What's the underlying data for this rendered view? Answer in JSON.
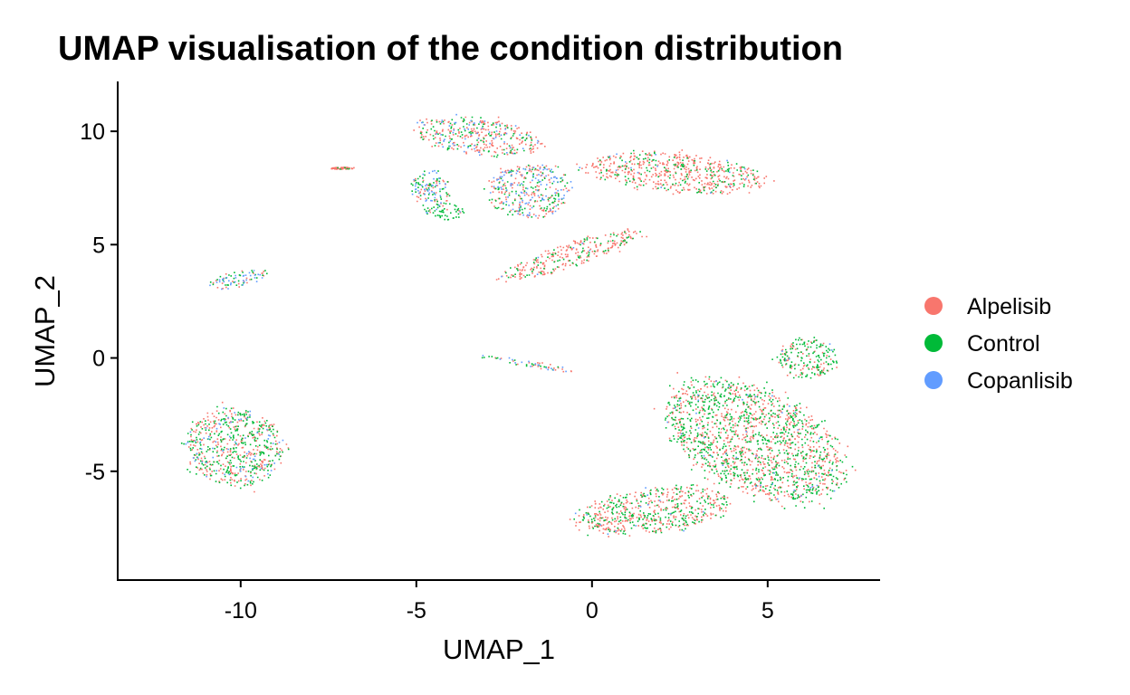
{
  "chart_data": {
    "type": "scatter",
    "title": "UMAP visualisation of the condition distribution",
    "xlabel": "UMAP_1",
    "ylabel": "UMAP_2",
    "xlim": [
      -13.5,
      8.2
    ],
    "ylim": [
      -9.8,
      12.2
    ],
    "x_ticks": [
      -10,
      -5,
      0,
      5
    ],
    "x_tick_labels": [
      "-10",
      "-5",
      "0",
      "5"
    ],
    "y_ticks": [
      -5,
      0,
      5,
      10
    ],
    "y_tick_labels": [
      "-5",
      "0",
      "5",
      "10"
    ],
    "grid": false,
    "legend_position": "right",
    "series": [
      {
        "name": "Alpelisib",
        "color": "#F8766D"
      },
      {
        "name": "Control",
        "color": "#00BA38"
      },
      {
        "name": "Copanlisib",
        "color": "#619CFF"
      }
    ],
    "clusters": [
      {
        "id": "cluster-large-bottom-right",
        "center": [
          4.6,
          -3.6
        ],
        "spread": [
          2.0,
          3.2
        ],
        "angle_deg": 42,
        "weights": [
          0.47,
          0.51,
          0.02
        ]
      },
      {
        "id": "cluster-bottom-right-lobe",
        "center": [
          1.8,
          -6.7
        ],
        "spread": [
          2.3,
          1.0
        ],
        "angle_deg": 12,
        "weights": [
          0.55,
          0.43,
          0.02
        ]
      },
      {
        "id": "cluster-bottom-right-upper",
        "center": [
          6.1,
          0.0
        ],
        "spread": [
          0.9,
          0.9
        ],
        "angle_deg": 0,
        "weights": [
          0.38,
          0.6,
          0.02
        ]
      },
      {
        "id": "cluster-top-right",
        "center": [
          2.3,
          8.2
        ],
        "spread": [
          2.6,
          0.9
        ],
        "angle_deg": -8,
        "weights": [
          0.72,
          0.25,
          0.03
        ]
      },
      {
        "id": "cluster-top-left-upper",
        "center": [
          -3.3,
          9.8
        ],
        "spread": [
          1.9,
          0.8
        ],
        "angle_deg": -12,
        "weights": [
          0.55,
          0.3,
          0.15
        ]
      },
      {
        "id": "cluster-top-middle",
        "center": [
          -1.8,
          7.4
        ],
        "spread": [
          1.2,
          1.2
        ],
        "angle_deg": 0,
        "weights": [
          0.45,
          0.3,
          0.25
        ]
      },
      {
        "id": "cluster-top-arm",
        "center": [
          -0.6,
          4.6
        ],
        "spread": [
          2.3,
          0.5
        ],
        "angle_deg": 28,
        "weights": [
          0.72,
          0.26,
          0.02
        ]
      },
      {
        "id": "cluster-top-green-patch",
        "center": [
          -4.2,
          6.5
        ],
        "spread": [
          0.6,
          0.4
        ],
        "angle_deg": 0,
        "weights": [
          0.15,
          0.8,
          0.05
        ]
      },
      {
        "id": "cluster-top-left-ring",
        "center": [
          -4.6,
          7.5
        ],
        "spread": [
          0.6,
          0.8
        ],
        "angle_deg": 0,
        "weights": [
          0.3,
          0.35,
          0.35
        ]
      },
      {
        "id": "cluster-small-left",
        "center": [
          -10.1,
          3.5
        ],
        "spread": [
          0.9,
          0.35
        ],
        "angle_deg": 18,
        "weights": [
          0.3,
          0.4,
          0.3
        ]
      },
      {
        "id": "cluster-left-round",
        "center": [
          -10.2,
          -3.9
        ],
        "spread": [
          1.45,
          1.75
        ],
        "angle_deg": 0,
        "weights": [
          0.45,
          0.43,
          0.12
        ]
      },
      {
        "id": "cluster-middle-streak",
        "center": [
          -1.9,
          -0.2
        ],
        "spread": [
          1.5,
          0.15
        ],
        "angle_deg": -14,
        "weights": [
          0.35,
          0.35,
          0.3
        ]
      },
      {
        "id": "cluster-isolated-top-left",
        "center": [
          -7.1,
          8.4
        ],
        "spread": [
          0.35,
          0.05
        ],
        "angle_deg": 0,
        "weights": [
          0.9,
          0.1,
          0.0
        ]
      }
    ]
  }
}
